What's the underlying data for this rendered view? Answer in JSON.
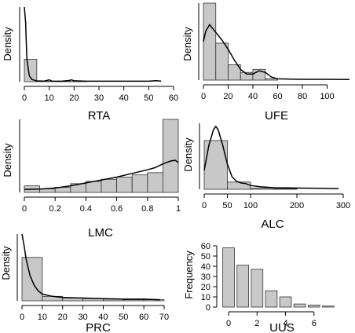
{
  "chart_data": [
    {
      "id": "rta",
      "type": "histogram",
      "xlabel": "RTA",
      "ylabel": "Density",
      "xlim": [
        0,
        60
      ],
      "xticks": [
        0,
        10,
        20,
        30,
        40,
        50,
        60
      ],
      "y_axis_ticks": false,
      "bins": [
        [
          0,
          5,
          0.15
        ],
        [
          5,
          10,
          0.003
        ],
        [
          10,
          15,
          0.002
        ],
        [
          15,
          20,
          0.002
        ],
        [
          20,
          25,
          0.0015
        ]
      ],
      "density": [
        [
          0,
          0.6
        ],
        [
          0.5,
          0.4
        ],
        [
          1,
          0.15
        ],
        [
          2,
          0.04
        ],
        [
          3,
          0.015
        ],
        [
          5,
          0.005
        ],
        [
          8,
          0.004
        ],
        [
          10,
          0.012
        ],
        [
          11,
          0.004
        ],
        [
          15,
          0.003
        ],
        [
          18,
          0.008
        ],
        [
          19,
          0.012
        ],
        [
          20,
          0.006
        ],
        [
          25,
          0.003
        ],
        [
          35,
          0.003
        ],
        [
          50,
          0.003
        ],
        [
          53,
          0.007
        ],
        [
          55,
          0.003
        ]
      ],
      "ylim": [
        0,
        0.5
      ]
    },
    {
      "id": "ufe",
      "type": "histogram",
      "xlabel": "UFE",
      "ylabel": "Density",
      "xlim": [
        0,
        120
      ],
      "xticks": [
        0,
        20,
        40,
        60,
        80,
        100
      ],
      "y_axis_ticks": false,
      "bins": [
        [
          0,
          10,
          0.05
        ],
        [
          10,
          20,
          0.024
        ],
        [
          20,
          30,
          0.01
        ],
        [
          30,
          40,
          0.005
        ],
        [
          40,
          50,
          0.007
        ],
        [
          50,
          60,
          0.001
        ]
      ],
      "density": [
        [
          0,
          0.025
        ],
        [
          2,
          0.032
        ],
        [
          5,
          0.036
        ],
        [
          10,
          0.031
        ],
        [
          15,
          0.026
        ],
        [
          20,
          0.02
        ],
        [
          25,
          0.013
        ],
        [
          30,
          0.007
        ],
        [
          35,
          0.004
        ],
        [
          40,
          0.004
        ],
        [
          45,
          0.006
        ],
        [
          50,
          0.005
        ],
        [
          55,
          0.002
        ],
        [
          60,
          0.0008
        ],
        [
          80,
          0.0005
        ],
        [
          100,
          0.0005
        ],
        [
          118,
          0.0004
        ]
      ],
      "ylim": [
        0,
        0.05
      ]
    },
    {
      "id": "lmc",
      "type": "histogram",
      "xlabel": "LMC",
      "ylabel": "Density",
      "xlim": [
        0,
        1
      ],
      "xticks": [
        0,
        0.2,
        0.4,
        0.6,
        0.8,
        1
      ],
      "xtick_labels": [
        "0",
        "0.2",
        "0.4",
        "0.6",
        "0.8",
        "1"
      ],
      "y_axis_ticks": false,
      "bins": [
        [
          0,
          0.1,
          0.09
        ],
        [
          0.1,
          0.2,
          0.05
        ],
        [
          0.2,
          0.3,
          0.07
        ],
        [
          0.3,
          0.4,
          0.12
        ],
        [
          0.4,
          0.5,
          0.15
        ],
        [
          0.5,
          0.6,
          0.18
        ],
        [
          0.6,
          0.7,
          0.21
        ],
        [
          0.7,
          0.8,
          0.24
        ],
        [
          0.8,
          0.9,
          0.27
        ],
        [
          0.9,
          1.0,
          1.0
        ]
      ],
      "density": [
        [
          0,
          0.04
        ],
        [
          0.1,
          0.045
        ],
        [
          0.2,
          0.06
        ],
        [
          0.3,
          0.09
        ],
        [
          0.4,
          0.13
        ],
        [
          0.5,
          0.17
        ],
        [
          0.6,
          0.21
        ],
        [
          0.7,
          0.26
        ],
        [
          0.8,
          0.31
        ],
        [
          0.85,
          0.34
        ],
        [
          0.9,
          0.39
        ],
        [
          0.95,
          0.43
        ],
        [
          0.98,
          0.44
        ],
        [
          1.0,
          0.41
        ]
      ],
      "ylim": [
        0,
        1.0
      ]
    },
    {
      "id": "alc",
      "type": "histogram",
      "xlabel": "ALC",
      "ylabel": "Density",
      "xlim": [
        0,
        300
      ],
      "xticks": [
        0,
        50,
        100,
        200,
        300
      ],
      "y_axis_ticks": false,
      "bins": [
        [
          0,
          50,
          0.0155
        ],
        [
          50,
          100,
          0.0023
        ],
        [
          100,
          150,
          0.0004
        ],
        [
          150,
          200,
          0.0002
        ]
      ],
      "density": [
        [
          0,
          0.006
        ],
        [
          10,
          0.014
        ],
        [
          20,
          0.019
        ],
        [
          25,
          0.02
        ],
        [
          30,
          0.019
        ],
        [
          40,
          0.014
        ],
        [
          50,
          0.008
        ],
        [
          60,
          0.004
        ],
        [
          70,
          0.0025
        ],
        [
          80,
          0.002
        ],
        [
          90,
          0.0018
        ],
        [
          100,
          0.0012
        ],
        [
          120,
          0.0008
        ],
        [
          150,
          0.0005
        ],
        [
          200,
          0.0004
        ],
        [
          250,
          0.0003
        ],
        [
          290,
          0.0002
        ]
      ],
      "ylim": [
        0,
        0.021
      ]
    },
    {
      "id": "prc",
      "type": "histogram",
      "xlabel": "PRC",
      "ylabel": "Density",
      "xlim": [
        0,
        70
      ],
      "xticks": [
        0,
        10,
        20,
        30,
        40,
        50,
        60,
        70
      ],
      "y_axis_ticks": false,
      "bins": [
        [
          0,
          10,
          0.078
        ],
        [
          10,
          20,
          0.008
        ],
        [
          20,
          30,
          0.005
        ],
        [
          30,
          40,
          0.004
        ],
        [
          40,
          50,
          0.003
        ],
        [
          50,
          60,
          0.002
        ],
        [
          60,
          70,
          0.002
        ]
      ],
      "density": [
        [
          0,
          0.12
        ],
        [
          1,
          0.1
        ],
        [
          2,
          0.075
        ],
        [
          4,
          0.045
        ],
        [
          6,
          0.028
        ],
        [
          8,
          0.018
        ],
        [
          10,
          0.012
        ],
        [
          15,
          0.008
        ],
        [
          20,
          0.006
        ],
        [
          30,
          0.005
        ],
        [
          40,
          0.004
        ],
        [
          50,
          0.003
        ],
        [
          60,
          0.003
        ],
        [
          68,
          0.002
        ]
      ],
      "ylim": [
        0,
        0.12
      ]
    },
    {
      "id": "uus",
      "type": "bar",
      "xlabel": "UUS",
      "ylabel": "Frequency",
      "xlim": [
        -0.5,
        8
      ],
      "xticks": [
        0,
        2,
        4,
        6
      ],
      "yticks": [
        0,
        10,
        20,
        30,
        40,
        50,
        60
      ],
      "ylim": [
        0,
        60
      ],
      "categories": [
        0,
        1,
        2,
        3,
        4,
        5,
        6,
        7
      ],
      "values": [
        58,
        41,
        37,
        16,
        10,
        3,
        2,
        1
      ]
    }
  ]
}
